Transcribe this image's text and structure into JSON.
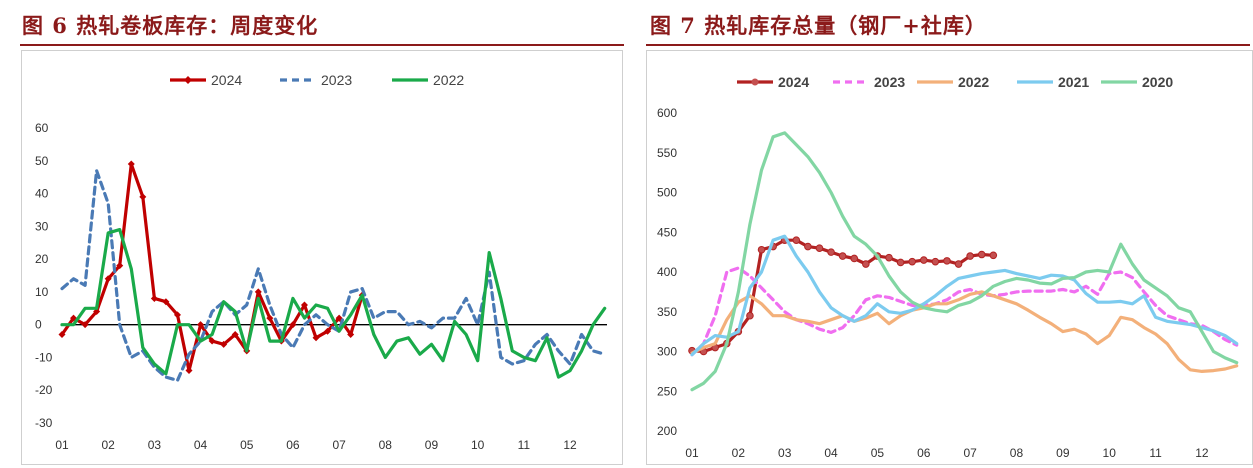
{
  "figures": [
    {
      "title": "图 6 热轧卷板库存：周度变化"
    },
    {
      "title": "图 7 热轧库存总量（钢厂+社库）"
    }
  ],
  "colors": {
    "title": "#8b1a1a",
    "rule": "#8b1a1a"
  },
  "chart_data": [
    {
      "type": "line",
      "title": "",
      "xlabel": "",
      "ylabel": "",
      "x_ticks": [
        "01",
        "02",
        "03",
        "04",
        "05",
        "06",
        "07",
        "08",
        "09",
        "10",
        "11",
        "12"
      ],
      "y_ticks": [
        60,
        50,
        40,
        30,
        20,
        10,
        0,
        -10,
        -20,
        -30
      ],
      "ylim": [
        -30,
        60
      ],
      "xlim": [
        1,
        12.8
      ],
      "grid": false,
      "legend": "top",
      "series": [
        {
          "name": "2024",
          "color": "#c00000",
          "style": "solid-diamond",
          "x": [
            1,
            1.25,
            1.5,
            1.75,
            2,
            2.25,
            2.5,
            2.75,
            3,
            3.25,
            3.5,
            3.75,
            4,
            4.25,
            4.5,
            4.75,
            5,
            5.25,
            5.5,
            5.75,
            6,
            6.25,
            6.5,
            6.75,
            7,
            7.25,
            7.5
          ],
          "y": [
            -3,
            2,
            0,
            4,
            14,
            18,
            49,
            39,
            8,
            7,
            3,
            -14,
            0,
            -5,
            -6,
            -3,
            -8,
            10,
            2,
            -5,
            0,
            6,
            -4,
            -2,
            2,
            -3,
            9
          ]
        },
        {
          "name": "2023",
          "color": "#4a7ab5",
          "style": "dashed",
          "x": [
            1,
            1.25,
            1.5,
            1.75,
            2,
            2.25,
            2.5,
            2.75,
            3,
            3.25,
            3.5,
            3.75,
            4,
            4.25,
            4.5,
            4.75,
            5,
            5.25,
            5.5,
            5.75,
            6,
            6.25,
            6.5,
            6.75,
            7,
            7.25,
            7.5,
            7.75,
            8,
            8.25,
            8.5,
            8.75,
            9,
            9.25,
            9.5,
            9.75,
            10,
            10.25,
            10.5,
            10.75,
            11,
            11.25,
            11.5,
            11.75,
            12,
            12.25,
            12.5,
            12.75
          ],
          "y": [
            11,
            14,
            12,
            47,
            37,
            0,
            -10,
            -8,
            -13,
            -16,
            -17,
            -9,
            -5,
            4,
            7,
            3,
            6,
            17,
            6,
            -3,
            -7,
            0,
            3,
            0,
            -2,
            10,
            11,
            2,
            4,
            4,
            0,
            1,
            -1,
            2,
            2,
            8,
            0,
            16,
            -10,
            -12,
            -11,
            -6,
            -3,
            -8,
            -12,
            -3,
            -8,
            -9
          ]
        },
        {
          "name": "2022",
          "color": "#1aaa4a",
          "style": "solid",
          "x": [
            1,
            1.25,
            1.5,
            1.75,
            2,
            2.25,
            2.5,
            2.75,
            3,
            3.25,
            3.5,
            3.75,
            4,
            4.25,
            4.5,
            4.75,
            5,
            5.25,
            5.5,
            5.75,
            6,
            6.25,
            6.5,
            6.75,
            7,
            7.25,
            7.5,
            7.75,
            8,
            8.25,
            8.5,
            8.75,
            9,
            9.25,
            9.5,
            9.75,
            10,
            10.25,
            10.5,
            10.75,
            11,
            11.25,
            11.5,
            11.75,
            12,
            12.25,
            12.5,
            12.75
          ],
          "y": [
            0,
            0,
            5,
            5,
            28,
            29,
            17,
            -7,
            -12,
            -15,
            0,
            0,
            -5,
            -3,
            7,
            4,
            -8,
            8,
            -5,
            -5,
            8,
            2,
            6,
            5,
            -2,
            3,
            9,
            -3,
            -10,
            -5,
            -4,
            -9,
            -6,
            -11,
            1,
            -3,
            -11,
            22,
            8,
            -8,
            -10,
            -11,
            -4,
            -16,
            -14,
            -8,
            0,
            5
          ]
        }
      ]
    },
    {
      "type": "line",
      "title": "",
      "xlabel": "",
      "ylabel": "",
      "x_ticks": [
        "01",
        "02",
        "03",
        "04",
        "05",
        "06",
        "07",
        "08",
        "09",
        "10",
        "11",
        "12"
      ],
      "y_ticks": [
        600,
        550,
        500,
        450,
        400,
        350,
        300,
        250,
        200
      ],
      "ylim": [
        200,
        600
      ],
      "xlim": [
        1,
        12.8
      ],
      "grid": false,
      "legend": "top",
      "series": [
        {
          "name": "2024",
          "color": "#b22222",
          "style": "solid-dot",
          "x": [
            1,
            1.25,
            1.5,
            1.75,
            2,
            2.25,
            2.5,
            2.75,
            3,
            3.25,
            3.5,
            3.75,
            4,
            4.25,
            4.5,
            4.75,
            5,
            5.25,
            5.5,
            5.75,
            6,
            6.25,
            6.5,
            6.75,
            7,
            7.25,
            7.5
          ],
          "y": [
            301,
            300,
            305,
            310,
            325,
            345,
            428,
            432,
            440,
            440,
            432,
            430,
            425,
            420,
            417,
            410,
            420,
            418,
            412,
            413,
            415,
            413,
            414,
            410,
            420,
            422,
            421
          ]
        },
        {
          "name": "2023",
          "color": "#f06ef0",
          "style": "dashed",
          "x": [
            1,
            1.25,
            1.5,
            1.75,
            2,
            2.25,
            2.5,
            2.75,
            3,
            3.25,
            3.5,
            3.75,
            4,
            4.25,
            4.5,
            4.75,
            5,
            5.25,
            5.5,
            5.75,
            6,
            6.25,
            6.5,
            6.75,
            7,
            7.25,
            7.5,
            7.75,
            8,
            8.25,
            8.5,
            8.75,
            9,
            9.25,
            9.5,
            9.75,
            10,
            10.25,
            10.5,
            10.75,
            11,
            11.25,
            11.5,
            11.75,
            12,
            12.25,
            12.5,
            12.75
          ],
          "y": [
            296,
            310,
            345,
            400,
            405,
            395,
            380,
            365,
            350,
            340,
            335,
            328,
            324,
            330,
            345,
            365,
            370,
            368,
            363,
            358,
            358,
            360,
            365,
            375,
            378,
            372,
            370,
            372,
            375,
            376,
            376,
            376,
            378,
            375,
            382,
            372,
            398,
            400,
            393,
            375,
            358,
            345,
            340,
            335,
            333,
            325,
            315,
            308
          ]
        },
        {
          "name": "2022",
          "color": "#f3b07a",
          "style": "solid",
          "x": [
            1,
            1.25,
            1.5,
            1.75,
            2,
            2.25,
            2.5,
            2.75,
            3,
            3.25,
            3.5,
            3.75,
            4,
            4.25,
            4.5,
            4.75,
            5,
            5.25,
            5.5,
            5.75,
            6,
            6.25,
            6.5,
            6.75,
            7,
            7.25,
            7.5,
            7.75,
            8,
            8.25,
            8.5,
            8.75,
            9,
            9.25,
            9.5,
            9.75,
            10,
            10.25,
            10.5,
            10.75,
            11,
            11.25,
            11.5,
            11.75,
            12,
            12.25,
            12.5,
            12.75
          ],
          "y": [
            298,
            305,
            310,
            340,
            362,
            370,
            360,
            345,
            345,
            340,
            338,
            335,
            340,
            345,
            338,
            342,
            348,
            335,
            345,
            352,
            355,
            360,
            360,
            365,
            372,
            375,
            370,
            365,
            360,
            352,
            343,
            335,
            325,
            328,
            322,
            310,
            320,
            343,
            340,
            330,
            322,
            310,
            290,
            277,
            275,
            276,
            278,
            282
          ]
        },
        {
          "name": "2021",
          "color": "#7ccbef",
          "style": "solid",
          "x": [
            1,
            1.25,
            1.5,
            1.75,
            2,
            2.25,
            2.5,
            2.75,
            3,
            3.25,
            3.5,
            3.75,
            4,
            4.25,
            4.5,
            4.75,
            5,
            5.25,
            5.5,
            5.75,
            6,
            6.25,
            6.5,
            6.75,
            7,
            7.25,
            7.5,
            7.75,
            8,
            8.25,
            8.5,
            8.75,
            9,
            9.25,
            9.5,
            9.75,
            10,
            10.25,
            10.5,
            10.75,
            11,
            11.25,
            11.5,
            11.75,
            12,
            12.25,
            12.5,
            12.75
          ],
          "y": [
            296,
            310,
            320,
            318,
            325,
            380,
            400,
            440,
            445,
            420,
            400,
            375,
            355,
            345,
            338,
            345,
            360,
            350,
            348,
            352,
            360,
            370,
            382,
            392,
            395,
            398,
            400,
            402,
            398,
            395,
            392,
            396,
            395,
            390,
            373,
            362,
            362,
            363,
            360,
            370,
            343,
            338,
            336,
            334,
            330,
            326,
            320,
            310
          ]
        },
        {
          "name": "2020",
          "color": "#82d6a3",
          "style": "solid",
          "x": [
            1,
            1.25,
            1.5,
            1.75,
            2,
            2.25,
            2.5,
            2.75,
            3,
            3.25,
            3.5,
            3.75,
            4,
            4.25,
            4.5,
            4.75,
            5,
            5.25,
            5.5,
            5.75,
            6,
            6.25,
            6.5,
            6.75,
            7,
            7.25,
            7.5,
            7.75,
            8,
            8.25,
            8.5,
            8.75,
            9,
            9.25,
            9.5,
            9.75,
            10,
            10.25,
            10.5,
            10.75,
            11,
            11.25,
            11.5,
            11.75,
            12,
            12.25,
            12.5,
            12.75
          ],
          "y": [
            252,
            260,
            275,
            310,
            375,
            460,
            528,
            570,
            575,
            560,
            545,
            525,
            500,
            470,
            445,
            435,
            420,
            395,
            375,
            362,
            355,
            352,
            350,
            358,
            362,
            370,
            382,
            388,
            392,
            390,
            386,
            385,
            392,
            393,
            400,
            402,
            400,
            435,
            410,
            390,
            380,
            370,
            355,
            350,
            325,
            300,
            292,
            286
          ]
        }
      ]
    }
  ]
}
